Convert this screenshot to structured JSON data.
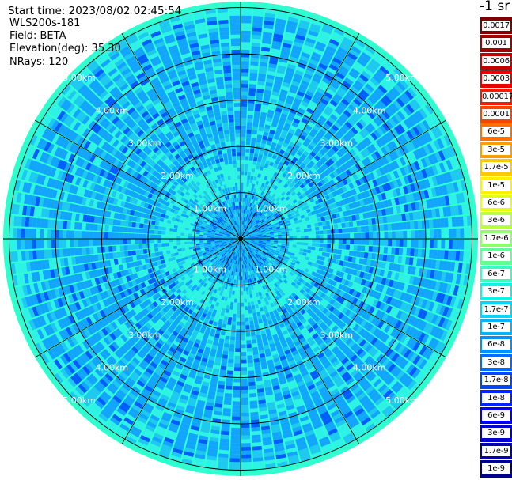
{
  "header": {
    "start_time": "Start time: 2023/08/02 02:45:54",
    "device": "WLS200s-181",
    "field": "Field: BETA",
    "elevation": "Elevation(deg): 35.30",
    "nrays": "NRays: 120"
  },
  "colorbar": {
    "unit": "-1 sr",
    "labels": [
      "0.0017",
      "0.001",
      "0.0006",
      "0.0003",
      "0.00017",
      "0.0001",
      "6e-5",
      "3e-5",
      "1.7e-5",
      "1e-5",
      "6e-6",
      "3e-6",
      "1.7e-6",
      "1e-6",
      "6e-7",
      "3e-7",
      "1.7e-7",
      "1e-7",
      "6e-8",
      "3e-8",
      "1.7e-8",
      "1e-8",
      "6e-9",
      "3e-9",
      "1.7e-9",
      "1e-9"
    ],
    "colors": [
      "#800000",
      "#a00000",
      "#c40000",
      "#e80000",
      "#ff1800",
      "#ff4400",
      "#ff7000",
      "#ff9c00",
      "#ffc800",
      "#fff000",
      "#e6ff11",
      "#baff3d",
      "#8eff69",
      "#62ff95",
      "#36ffc1",
      "#11f2e6",
      "#00d8ff",
      "#00b4ff",
      "#0090ff",
      "#006cff",
      "#0048ff",
      "#0024ff",
      "#0000f6",
      "#0000d2",
      "#0000ae",
      "#00008a"
    ]
  },
  "range_rings": {
    "labels": [
      "1.00km",
      "2.00km",
      "3.00km",
      "4.00km",
      "5.00km"
    ]
  },
  "field_colors": {
    "dominant": "#12a4ff",
    "light": "#2ff2e6",
    "medium": "#1fc8f0",
    "dark": "#005cff",
    "outer_edge": "#2fffd0"
  }
}
